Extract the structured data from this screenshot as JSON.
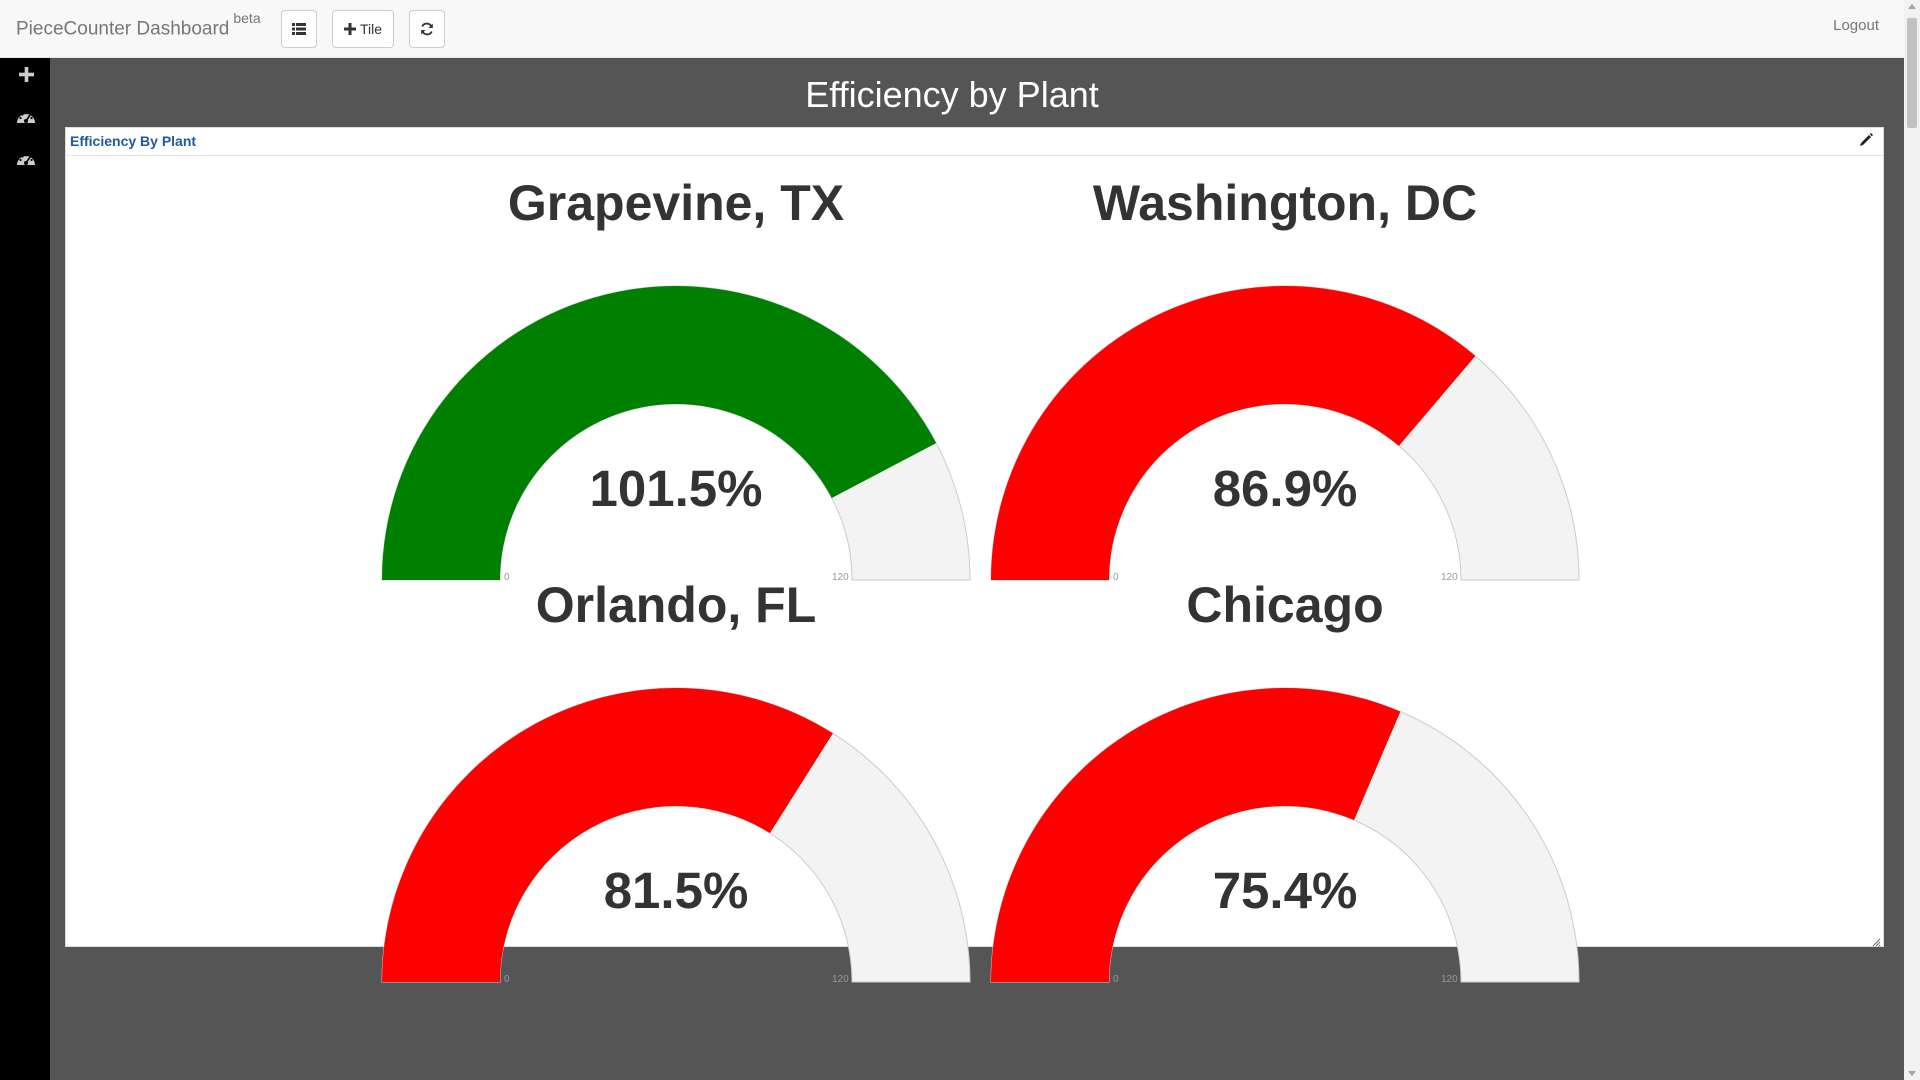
{
  "app": {
    "brand": "PieceCounter Dashboard",
    "brand_badge": "beta",
    "tile_button_label": "Tile",
    "logout_label": "Logout"
  },
  "icons": {
    "list": "list-icon",
    "plus": "plus-icon",
    "refresh": "refresh-icon",
    "sidebar": [
      "plus-icon",
      "dashboard-icon",
      "dashboard-icon"
    ],
    "edit": "pencil-icon",
    "resize": "resize-handle-icon"
  },
  "page": {
    "title": "Efficiency by Plant"
  },
  "tile": {
    "title": "Efficiency By Plant"
  },
  "colors": {
    "good": "#008000",
    "bad": "#ff0000",
    "track": "#f3f3f3"
  },
  "chart_data": [
    {
      "type": "gauge",
      "title": "Grapevine, TX",
      "value": 101.5,
      "value_label": "101.5%",
      "min": 0,
      "max": 120,
      "min_label": "0",
      "max_label": "120",
      "color": "#008000"
    },
    {
      "type": "gauge",
      "title": "Washington, DC",
      "value": 86.9,
      "value_label": "86.9%",
      "min": 0,
      "max": 120,
      "min_label": "0",
      "max_label": "120",
      "color": "#ff0000"
    },
    {
      "type": "gauge",
      "title": "Orlando, FL",
      "value": 81.5,
      "value_label": "81.5%",
      "min": 0,
      "max": 120,
      "min_label": "0",
      "max_label": "120",
      "color": "#ff0000"
    },
    {
      "type": "gauge",
      "title": "Chicago",
      "value": 75.4,
      "value_label": "75.4%",
      "min": 0,
      "max": 120,
      "min_label": "0",
      "max_label": "120",
      "color": "#ff0000"
    }
  ]
}
